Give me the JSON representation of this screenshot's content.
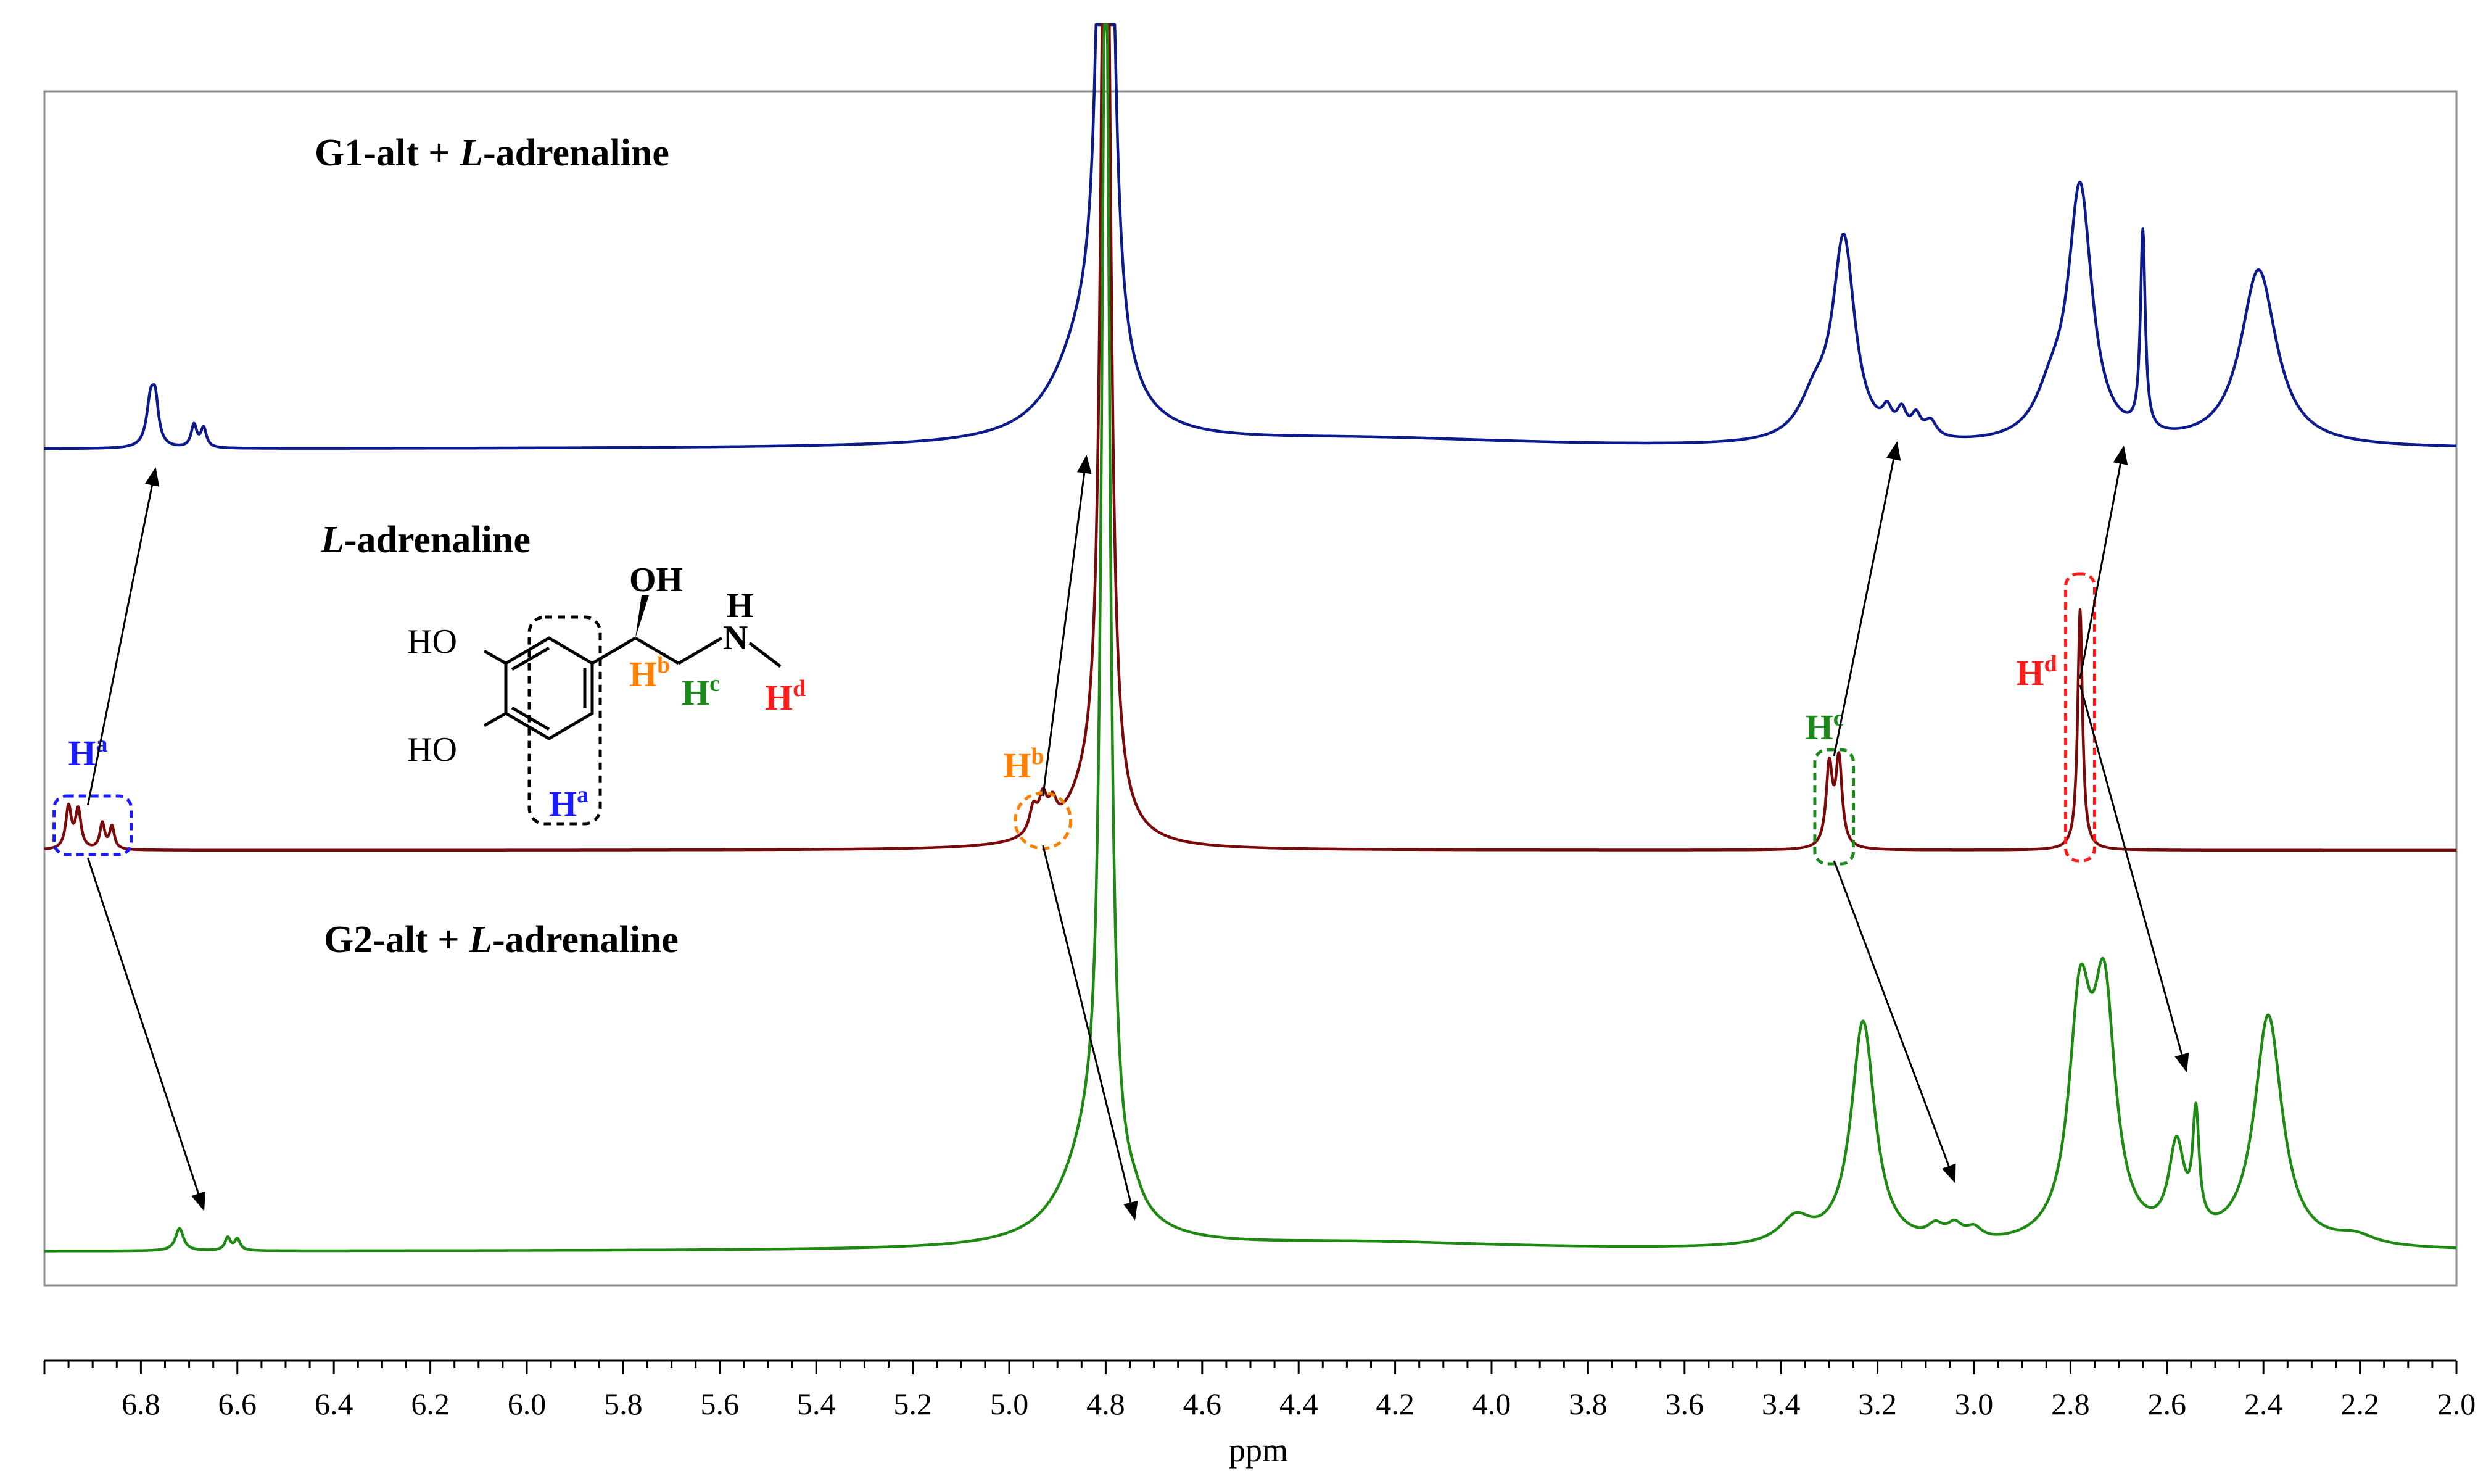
{
  "chart_data": {
    "type": "line",
    "title": "",
    "xlabel": "ppm",
    "ylabel": "",
    "xlim": [
      7.0,
      2.0
    ],
    "x_reversed": true,
    "x_ticks": [
      6.8,
      6.6,
      6.4,
      6.2,
      6.0,
      5.8,
      5.6,
      5.4,
      5.2,
      5.0,
      4.8,
      4.6,
      4.4,
      4.2,
      4.0,
      3.8,
      3.6,
      3.4,
      3.2,
      3.0,
      2.8,
      2.6,
      2.4,
      2.2,
      2.0
    ],
    "x_tick_labels": [
      "6.8",
      "6.6",
      "6.4",
      "6.2",
      "6.0",
      "5.8",
      "5.6",
      "5.4",
      "5.2",
      "5.0",
      "4.8",
      "4.6",
      "4.4",
      "4.2",
      "4.0",
      "3.8",
      "3.6",
      "3.4",
      "3.2",
      "3.0",
      "2.8",
      "2.6",
      "2.4",
      "2.2",
      "2.0"
    ],
    "series": [
      {
        "name": "G1-alt + L-adrenaline",
        "label_prefix": "G1-alt + ",
        "label_italic": "L",
        "label_suffix": "-adrenaline",
        "color": "#0d1a8c",
        "peaks": [
          {
            "ppm": 6.78,
            "height": 0.14,
            "width": 0.01
          },
          {
            "ppm": 6.77,
            "height": 0.12,
            "width": 0.008
          },
          {
            "ppm": 6.69,
            "height": 0.07,
            "width": 0.007
          },
          {
            "ppm": 6.67,
            "height": 0.06,
            "width": 0.007
          },
          {
            "ppm": 4.8,
            "height": 4.0,
            "width": 0.012
          },
          {
            "ppm": 4.84,
            "height": 0.3,
            "width": 0.08
          },
          {
            "ppm": 4.27,
            "height": 0.03,
            "width": 0.45
          },
          {
            "ppm": 3.27,
            "height": 0.62,
            "width": 0.028
          },
          {
            "ppm": 3.33,
            "height": 0.12,
            "width": 0.04
          },
          {
            "ppm": 3.18,
            "height": 0.06,
            "width": 0.012
          },
          {
            "ppm": 3.15,
            "height": 0.07,
            "width": 0.012
          },
          {
            "ppm": 3.12,
            "height": 0.06,
            "width": 0.012
          },
          {
            "ppm": 3.09,
            "height": 0.05,
            "width": 0.015
          },
          {
            "ppm": 2.78,
            "height": 0.78,
            "width": 0.03
          },
          {
            "ppm": 2.84,
            "height": 0.12,
            "width": 0.04
          },
          {
            "ppm": 2.65,
            "height": 0.62,
            "width": 0.006
          },
          {
            "ppm": 2.41,
            "height": 0.55,
            "width": 0.045
          }
        ]
      },
      {
        "name": "L-adrenaline",
        "label_prefix": "",
        "label_italic": "L",
        "label_suffix": "-adrenaline",
        "color": "#7a0a0a",
        "peaks": [
          {
            "ppm": 6.95,
            "height": 0.13,
            "width": 0.007
          },
          {
            "ppm": 6.93,
            "height": 0.12,
            "width": 0.007
          },
          {
            "ppm": 6.88,
            "height": 0.08,
            "width": 0.006
          },
          {
            "ppm": 6.86,
            "height": 0.07,
            "width": 0.006
          },
          {
            "ppm": 4.95,
            "height": 0.08,
            "width": 0.01
          },
          {
            "ppm": 4.93,
            "height": 0.1,
            "width": 0.01
          },
          {
            "ppm": 4.91,
            "height": 0.07,
            "width": 0.01
          },
          {
            "ppm": 4.8,
            "height": 4.0,
            "width": 0.01
          },
          {
            "ppm": 4.83,
            "height": 0.15,
            "width": 0.06
          },
          {
            "ppm": 3.3,
            "height": 0.25,
            "width": 0.008
          },
          {
            "ppm": 3.28,
            "height": 0.27,
            "width": 0.008
          },
          {
            "ppm": 2.78,
            "height": 0.75,
            "width": 0.006
          }
        ]
      },
      {
        "name": "G2-alt + L-adrenaline",
        "label_prefix": "G2-alt + ",
        "label_italic": "L",
        "label_suffix": "-adrenaline",
        "color": "#1e8a14",
        "peaks": [
          {
            "ppm": 6.72,
            "height": 0.07,
            "width": 0.01
          },
          {
            "ppm": 6.62,
            "height": 0.04,
            "width": 0.007
          },
          {
            "ppm": 6.6,
            "height": 0.035,
            "width": 0.007
          },
          {
            "ppm": 4.8,
            "height": 4.0,
            "width": 0.01
          },
          {
            "ppm": 4.83,
            "height": 0.3,
            "width": 0.07
          },
          {
            "ppm": 4.74,
            "height": 0.03,
            "width": 0.02
          },
          {
            "ppm": 4.27,
            "height": 0.025,
            "width": 0.4
          },
          {
            "ppm": 3.23,
            "height": 0.7,
            "width": 0.03
          },
          {
            "ppm": 3.37,
            "height": 0.08,
            "width": 0.04
          },
          {
            "ppm": 3.08,
            "height": 0.04,
            "width": 0.02
          },
          {
            "ppm": 3.04,
            "height": 0.045,
            "width": 0.02
          },
          {
            "ppm": 3.0,
            "height": 0.035,
            "width": 0.02
          },
          {
            "ppm": 2.78,
            "height": 0.7,
            "width": 0.028
          },
          {
            "ppm": 2.73,
            "height": 0.72,
            "width": 0.028
          },
          {
            "ppm": 2.58,
            "height": 0.28,
            "width": 0.02
          },
          {
            "ppm": 2.54,
            "height": 0.34,
            "width": 0.008
          },
          {
            "ppm": 2.39,
            "height": 0.72,
            "width": 0.035
          },
          {
            "ppm": 2.21,
            "height": 0.03,
            "width": 0.05
          }
        ]
      }
    ],
    "proton_labels": [
      {
        "id": "a",
        "base": "H",
        "sup": "a",
        "ppm": 6.91,
        "color": "#1a1aff"
      },
      {
        "id": "b",
        "base": "H",
        "sup": "b",
        "ppm": 4.93,
        "color": "#ff8000"
      },
      {
        "id": "c",
        "base": "H",
        "sup": "c",
        "ppm": 3.29,
        "color": "#1a8a1a"
      },
      {
        "id": "d",
        "base": "H",
        "sup": "d",
        "ppm": 2.78,
        "color": "#ff1a1a"
      }
    ],
    "shifts": [
      {
        "proton": "a",
        "from_ppm": 6.91,
        "to_top_ppm": 6.77,
        "to_bottom_ppm": 6.67
      },
      {
        "proton": "b",
        "from_ppm": 4.93,
        "to_top_ppm": 4.84,
        "to_bottom_ppm": 4.74
      },
      {
        "proton": "c",
        "from_ppm": 3.29,
        "to_top_ppm": 3.16,
        "to_bottom_ppm": 3.04
      },
      {
        "proton": "d",
        "from_ppm": 2.78,
        "to_top_ppm": 2.69,
        "to_bottom_ppm": 2.56
      }
    ],
    "structure": {
      "substituent_1": "HO",
      "substituent_2": "HO",
      "hydroxyl": "OH",
      "amine_h": "H",
      "amine_n": "N"
    }
  }
}
